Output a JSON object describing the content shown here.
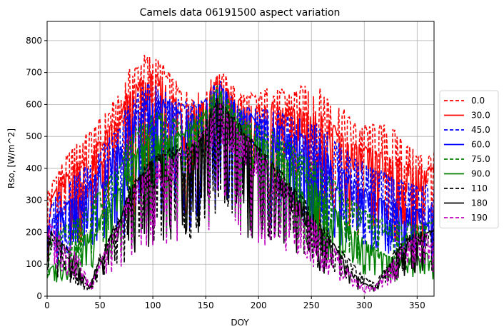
{
  "chart_data": {
    "type": "line",
    "title": "Camels data 06191500 aspect variation",
    "xlabel": "DOY",
    "ylabel": "Rso, [W/m^2]",
    "xlim": [
      0,
      366
    ],
    "ylim": [
      0,
      860
    ],
    "x_ticks": [
      0,
      50,
      100,
      150,
      200,
      250,
      300,
      350
    ],
    "y_ticks": [
      0,
      100,
      200,
      300,
      400,
      500,
      600,
      700,
      800
    ],
    "grid": true,
    "legend_position": "center-right outside plot",
    "x": [
      0,
      10,
      20,
      30,
      40,
      50,
      60,
      70,
      75,
      80,
      90,
      100,
      110,
      120,
      130,
      140,
      150,
      160,
      170,
      180,
      190,
      200,
      210,
      220,
      230,
      240,
      250,
      260,
      270,
      280,
      290,
      300,
      310,
      320,
      330,
      340,
      350,
      366
    ],
    "series": [
      {
        "name": "0.0",
        "color": "#ff0000",
        "dash": "dashed",
        "values": [
          330,
          400,
          450,
          490,
          520,
          560,
          600,
          640,
          700,
          720,
          760,
          760,
          730,
          680,
          650,
          640,
          640,
          720,
          690,
          650,
          640,
          640,
          660,
          650,
          650,
          660,
          660,
          650,
          620,
          590,
          550,
          540,
          540,
          540,
          520,
          480,
          450,
          450
        ]
      },
      {
        "name": "30.0",
        "color": "#ff0000",
        "dash": "solid",
        "values": [
          290,
          360,
          400,
          430,
          450,
          500,
          540,
          580,
          640,
          650,
          690,
          700,
          680,
          640,
          620,
          620,
          620,
          700,
          660,
          620,
          610,
          600,
          610,
          600,
          590,
          600,
          590,
          570,
          540,
          510,
          480,
          470,
          460,
          450,
          440,
          420,
          410,
          410
        ]
      },
      {
        "name": "45.0",
        "color": "#0000ff",
        "dash": "dashed",
        "values": [
          260,
          330,
          360,
          390,
          420,
          470,
          500,
          540,
          600,
          620,
          660,
          670,
          650,
          630,
          610,
          610,
          620,
          690,
          650,
          610,
          600,
          590,
          590,
          580,
          560,
          560,
          550,
          530,
          500,
          470,
          440,
          420,
          400,
          390,
          370,
          360,
          350,
          350
        ]
      },
      {
        "name": "60.0",
        "color": "#0000ff",
        "dash": "solid",
        "values": [
          220,
          270,
          300,
          320,
          360,
          410,
          450,
          490,
          560,
          580,
          620,
          630,
          620,
          600,
          590,
          600,
          610,
          680,
          640,
          600,
          580,
          560,
          560,
          540,
          520,
          510,
          500,
          480,
          440,
          400,
          370,
          340,
          320,
          300,
          290,
          280,
          280,
          280
        ]
      },
      {
        "name": "75.0",
        "color": "#008000",
        "dash": "dashed",
        "values": [
          150,
          200,
          230,
          250,
          290,
          340,
          380,
          420,
          480,
          510,
          550,
          570,
          580,
          570,
          560,
          580,
          600,
          670,
          630,
          590,
          560,
          540,
          520,
          500,
          480,
          460,
          440,
          400,
          370,
          330,
          300,
          270,
          250,
          240,
          230,
          230,
          230,
          240
        ]
      },
      {
        "name": "90.0",
        "color": "#008000",
        "dash": "solid",
        "values": [
          80,
          110,
          140,
          170,
          210,
          260,
          300,
          350,
          420,
          450,
          480,
          510,
          520,
          520,
          520,
          550,
          580,
          660,
          610,
          570,
          540,
          510,
          480,
          450,
          420,
          390,
          360,
          330,
          290,
          250,
          210,
          180,
          150,
          130,
          120,
          120,
          130,
          140
        ]
      },
      {
        "name": "110",
        "color": "#000000",
        "dash": "dashed",
        "values": [
          200,
          160,
          120,
          60,
          30,
          130,
          200,
          260,
          320,
          360,
          400,
          440,
          460,
          470,
          480,
          510,
          550,
          630,
          590,
          550,
          510,
          470,
          440,
          400,
          360,
          320,
          280,
          230,
          190,
          140,
          100,
          60,
          40,
          90,
          150,
          190,
          200,
          200
        ]
      },
      {
        "name": "180",
        "color": "#000000",
        "dash": "solid",
        "values": [
          220,
          180,
          150,
          100,
          30,
          120,
          190,
          250,
          310,
          350,
          390,
          430,
          450,
          460,
          470,
          500,
          540,
          630,
          590,
          550,
          510,
          470,
          430,
          390,
          340,
          300,
          260,
          210,
          170,
          120,
          70,
          40,
          30,
          80,
          140,
          180,
          200,
          210
        ]
      },
      {
        "name": "190",
        "color": "#c000c0",
        "dash": "dashed",
        "values": [
          240,
          200,
          170,
          120,
          40,
          110,
          180,
          240,
          300,
          340,
          380,
          420,
          440,
          450,
          460,
          490,
          530,
          620,
          580,
          540,
          500,
          460,
          420,
          380,
          330,
          290,
          250,
          200,
          160,
          110,
          60,
          30,
          30,
          70,
          130,
          170,
          190,
          200
        ]
      }
    ]
  }
}
